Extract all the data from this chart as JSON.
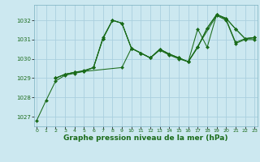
{
  "background_color": "#cce8f0",
  "grid_color": "#aacfdf",
  "line_color": "#1a6b1a",
  "marker_color": "#1a6b1a",
  "xlabel": "Graphe pression niveau de la mer (hPa)",
  "xlabel_fontsize": 6.5,
  "ylim": [
    1026.5,
    1032.8
  ],
  "xlim": [
    -0.3,
    23.3
  ],
  "yticks": [
    1027,
    1028,
    1029,
    1030,
    1031,
    1032
  ],
  "xticks": [
    0,
    1,
    2,
    3,
    4,
    5,
    6,
    7,
    8,
    9,
    10,
    11,
    12,
    13,
    14,
    15,
    16,
    17,
    18,
    19,
    20,
    21,
    22,
    23
  ],
  "series": [
    {
      "x": [
        0,
        1,
        2,
        3,
        4,
        5,
        6,
        7,
        8,
        9,
        10,
        11,
        12,
        13,
        14,
        15,
        16,
        17,
        18,
        19,
        20,
        21,
        22,
        23
      ],
      "y": [
        1026.8,
        1027.85,
        1028.85,
        1029.15,
        1029.25,
        1029.35,
        1029.55,
        1031.1,
        1032.0,
        1031.85,
        1030.55,
        1030.3,
        1030.05,
        1030.5,
        1030.25,
        1030.05,
        1029.85,
        1031.55,
        1030.6,
        1032.3,
        1032.05,
        1030.85,
        1031.05,
        1031.1
      ]
    },
    {
      "x": [
        2,
        3,
        4,
        5,
        6,
        7,
        8,
        9,
        10,
        11,
        12,
        13,
        14,
        15,
        16,
        17,
        18,
        19,
        20,
        21,
        22,
        23
      ],
      "y": [
        1029.0,
        1029.2,
        1029.3,
        1029.4,
        1029.55,
        1031.05,
        1032.0,
        1031.85,
        1030.55,
        1030.3,
        1030.05,
        1030.5,
        1030.25,
        1030.05,
        1029.85,
        1030.6,
        1031.6,
        1032.3,
        1032.1,
        1031.55,
        1031.05,
        1031.1
      ]
    },
    {
      "x": [
        2,
        3,
        4,
        5,
        6,
        7,
        8,
        9,
        10,
        11,
        12,
        13,
        14,
        15,
        16,
        19,
        20,
        21,
        22,
        23
      ],
      "y": [
        1029.0,
        1029.2,
        1029.3,
        1029.35,
        1029.55,
        1031.05,
        1032.0,
        1031.85,
        1030.55,
        1030.3,
        1030.05,
        1030.45,
        1030.2,
        1030.0,
        1029.85,
        1032.25,
        1032.0,
        1030.8,
        1031.0,
        1031.0
      ]
    },
    {
      "x": [
        2,
        3,
        4,
        9,
        10,
        11,
        12,
        13,
        14,
        15,
        16,
        17,
        18,
        19,
        20,
        21,
        22,
        23
      ],
      "y": [
        1029.0,
        1029.2,
        1029.3,
        1029.55,
        1030.55,
        1030.3,
        1030.05,
        1030.5,
        1030.25,
        1030.05,
        1029.85,
        1030.6,
        1031.6,
        1032.3,
        1032.1,
        1031.55,
        1031.05,
        1031.1
      ]
    }
  ]
}
